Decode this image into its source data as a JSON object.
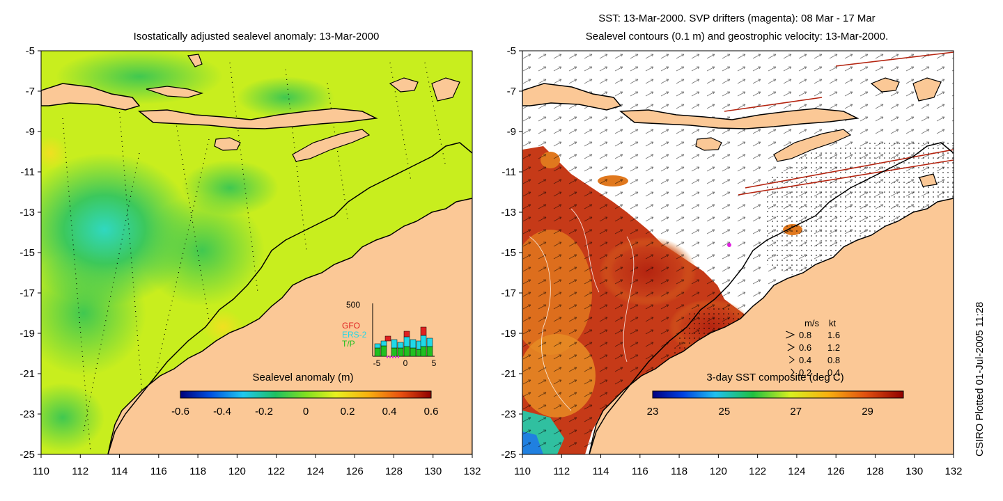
{
  "left_panel": {
    "title": "Isostatically adjusted sealevel anomaly: 13-Mar-2000",
    "lon_ticks": [
      "110",
      "112",
      "114",
      "116",
      "118",
      "120",
      "122",
      "124",
      "126",
      "128",
      "130",
      "132"
    ],
    "lat_ticks": [
      "-5",
      "-7",
      "-9",
      "-11",
      "-13",
      "-15",
      "-17",
      "-19",
      "-21",
      "-23",
      "-25"
    ],
    "colorbar": {
      "label": "Sealevel anomaly (m)",
      "ticks": [
        "-0.6",
        "-0.4",
        "-0.2",
        "0",
        "0.2",
        "0.4",
        "0.6"
      ]
    },
    "histogram": {
      "ymax_label": "500",
      "x_ticks": [
        "-5",
        "0",
        "5"
      ],
      "legend": [
        {
          "label": "GFO",
          "color": "#e02020"
        },
        {
          "label": "ERS-2",
          "color": "#20d8e8"
        },
        {
          "label": "T/P",
          "color": "#20c020"
        }
      ]
    }
  },
  "right_panel": {
    "title_line1": "SST: 13-Mar-2000. SVP drifters (magenta): 08 Mar - 17 Mar",
    "title_line2": "Sealevel contours (0.1 m) and geostrophic velocity: 13-Mar-2000.",
    "lon_ticks": [
      "110",
      "112",
      "114",
      "116",
      "118",
      "120",
      "122",
      "124",
      "126",
      "128",
      "130",
      "132"
    ],
    "lat_ticks": [
      "-5",
      "-7",
      "-9",
      "-11",
      "-13",
      "-15",
      "-17",
      "-19",
      "-21",
      "-23",
      "-25"
    ],
    "colorbar": {
      "label": "3-day SST composite (deg C)",
      "ticks": [
        "23",
        "25",
        "27",
        "29"
      ]
    },
    "velocity_key": {
      "header_ms": "m/s",
      "header_kt": "kt",
      "rows": [
        {
          "ms": "0.8",
          "kt": "1.6"
        },
        {
          "ms": "0.6",
          "kt": "1.2"
        },
        {
          "ms": "0.4",
          "kt": "0.8"
        },
        {
          "ms": "0.2",
          "kt": "0.4"
        }
      ]
    }
  },
  "footer": {
    "plotted": "CSIRO Plotted 01-Jul-2005 11:28"
  },
  "colors": {
    "land": "#fbc896",
    "sla_sea": "#c8ee1e",
    "sla_low": "#3cc84c",
    "sla_lowest": "#30d8c0",
    "sst_hot": "#b42410",
    "sst_warm": "#e0781e"
  }
}
